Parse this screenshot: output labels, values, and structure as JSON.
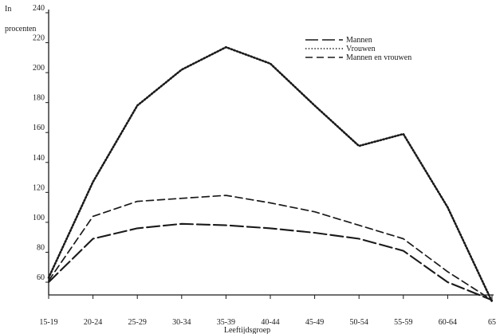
{
  "chart_data": {
    "type": "line",
    "title": "",
    "ylabel_line1": "In",
    "ylabel_line2": "procenten",
    "xlabel": "Leeftijdsgroep",
    "categories": [
      "15-19",
      "20-24",
      "25-29",
      "30-34",
      "35-39",
      "40-44",
      "45-49",
      "50-54",
      "55-59",
      "60-64",
      "65"
    ],
    "ylim": [
      50,
      240
    ],
    "yticks": [
      60,
      80,
      100,
      120,
      140,
      160,
      180,
      200,
      220,
      240
    ],
    "grid": false,
    "legend": "top-right",
    "series": [
      {
        "name": "Mannen",
        "style": "long-dash",
        "color": "#1a1a1a",
        "values": [
          60,
          89,
          96,
          99,
          98,
          96,
          93,
          89,
          81,
          60,
          48
        ]
      },
      {
        "name": "Vrouwen",
        "style": "dotted",
        "color": "#1a1a1a",
        "values": [
          63,
          127,
          178,
          202,
          217,
          206,
          178,
          151,
          159,
          110,
          47
        ]
      },
      {
        "name": "Mannen en vrouwen",
        "style": "dashed",
        "color": "#1a1a1a",
        "values": [
          61,
          104,
          114,
          116,
          118,
          113,
          107,
          98,
          89,
          67,
          48
        ]
      }
    ]
  }
}
